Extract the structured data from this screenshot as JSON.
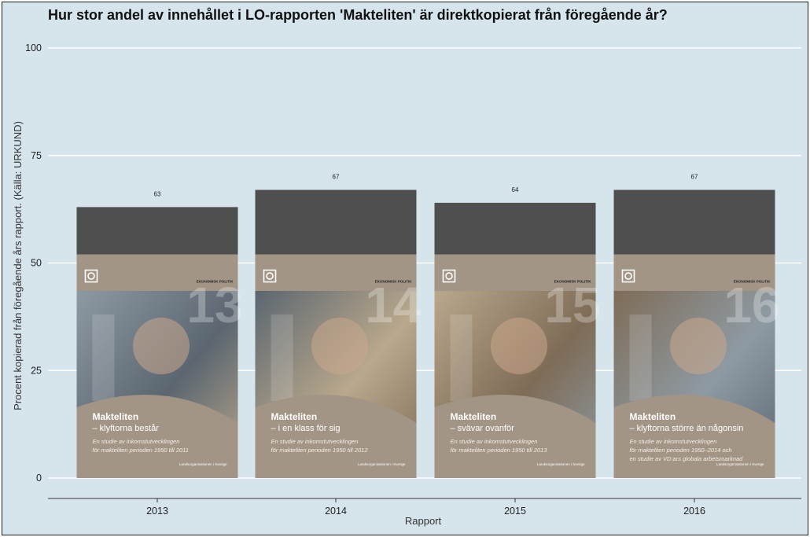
{
  "chart_data": {
    "type": "bar",
    "title": "Hur stor andel av innehållet i LO-rapporten 'Makteliten' är direktkopierat från föregående år?",
    "xlabel": "Rapport",
    "ylabel": "Procent kopierad från föregående års rapport. (Källa: URKUND)",
    "categories": [
      "2013",
      "2014",
      "2015",
      "2016"
    ],
    "values": [
      63,
      67,
      64,
      67
    ],
    "data_labels": [
      "63",
      "67",
      "64",
      "67"
    ],
    "ylim": [
      0,
      100
    ],
    "yticks": [
      "0",
      "25",
      "50",
      "75",
      "100"
    ],
    "grid": true,
    "legend": "none",
    "colors": {
      "bar": "#4f4f4f",
      "background": "#d6e4eb",
      "gridline": "#ffffff",
      "cover_band": "#a39585",
      "cover_photo": [
        "#8e9aa3",
        "#5b6670",
        "#b9a88c",
        "#7e6c57"
      ]
    }
  },
  "covers": [
    {
      "number": "13",
      "tag": "EKONOMISK POLITIK",
      "title_line1": "Makteliten",
      "title_line2": "– klyftorna består",
      "sub_line1": "En studie av inkomstutvecklingen",
      "sub_line2": "för makteliten perioden 1950 till 2011",
      "sub_line3": "",
      "publisher": "Landsorganisationen i Sverige"
    },
    {
      "number": "14",
      "tag": "EKONOMISK POLITIK",
      "title_line1": "Makteliten",
      "title_line2": "– i en klass för sig",
      "sub_line1": "En studie av inkomstutvecklingen",
      "sub_line2": "för makteliten perioden 1950 till 2012",
      "sub_line3": "",
      "publisher": "Landsorganisationen i Sverige"
    },
    {
      "number": "15",
      "tag": "EKONOMISK POLITIK",
      "title_line1": "Makteliten",
      "title_line2": "– svävar ovanför",
      "sub_line1": "En studie av inkomstutvecklingen",
      "sub_line2": "för makteliten perioden 1950 till 2013",
      "sub_line3": "",
      "publisher": "Landsorganisationen i Sverige"
    },
    {
      "number": "16",
      "tag": "EKONOMISK POLITIK",
      "title_line1": "Makteliten",
      "title_line2": "– klyftorna större än någonsin",
      "sub_line1": "En studie av inkomstutvecklingen",
      "sub_line2": "för makteliten perioden 1950–2014 och",
      "sub_line3": "en studie av VD:ars globala arbetsmarknad",
      "publisher": "Landsorganisationen i Sverige"
    }
  ]
}
